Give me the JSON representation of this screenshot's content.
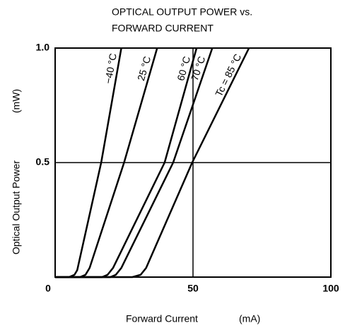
{
  "chart_data": {
    "type": "line",
    "title": [
      "OPTICAL OUTPUT POWER vs.",
      "FORWARD CURRENT"
    ],
    "x_label": "Forward Current",
    "x_unit": "(mA)",
    "y_label": "Optical Output Power",
    "y_unit": "(mW)",
    "xlim": [
      0,
      100
    ],
    "xticks": [
      0,
      50,
      100
    ],
    "ylim": [
      0,
      1
    ],
    "yticks": [
      0.5,
      {
        "value": 1,
        "label": "1.0"
      }
    ],
    "grid": true,
    "series": [
      {
        "name": "−40 °C",
        "color": "#000000",
        "x": [
          0,
          5,
          7,
          8,
          16.7,
          24
        ],
        "values": [
          0,
          0,
          0.01,
          0.03,
          0.5,
          1
        ]
      },
      {
        "name": "25 °C",
        "color": "#000000",
        "x": [
          0,
          9,
          11,
          12.5,
          25,
          37
        ],
        "values": [
          0,
          0,
          0.01,
          0.04,
          0.5,
          1
        ]
      },
      {
        "name": "60 °C",
        "color": "#000000",
        "x": [
          0,
          17,
          19,
          21,
          39.7,
          51.3
        ],
        "values": [
          0,
          0,
          0.01,
          0.04,
          0.5,
          1
        ]
      },
      {
        "name": "70 °C",
        "color": "#000000",
        "x": [
          0,
          20,
          22,
          24,
          42.8,
          57
        ],
        "values": [
          0,
          0,
          0.01,
          0.04,
          0.5,
          1
        ]
      },
      {
        "name": "Tc = 85 °C",
        "color": "#000000",
        "x": [
          0,
          28,
          31,
          33,
          49.7,
          70.3
        ],
        "values": [
          0,
          0,
          0.01,
          0.04,
          0.5,
          1
        ]
      }
    ]
  }
}
